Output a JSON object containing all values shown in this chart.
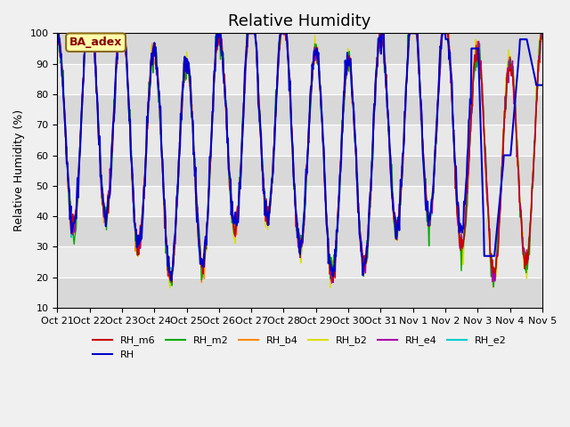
{
  "title": "Relative Humidity",
  "ylabel": "Relative Humidity (%)",
  "ylim": [
    10,
    100
  ],
  "yticks": [
    10,
    20,
    30,
    40,
    50,
    60,
    70,
    80,
    90,
    100
  ],
  "x_tick_labels": [
    "Oct 21",
    "Oct 22",
    "Oct 23",
    "Oct 24",
    "Oct 25",
    "Oct 26",
    "Oct 27",
    "Oct 28",
    "Oct 29",
    "Oct 30",
    "Oct 31",
    "Nov 1",
    "Nov 2",
    "Nov 3",
    "Nov 4",
    "Nov 5"
  ],
  "series": {
    "RH_m6": {
      "color": "#cc0000",
      "lw": 1.0
    },
    "RH": {
      "color": "#0000cc",
      "lw": 1.5
    },
    "RH_m2": {
      "color": "#00aa00",
      "lw": 1.0
    },
    "RH_b4": {
      "color": "#ff8800",
      "lw": 1.0
    },
    "RH_b2": {
      "color": "#dddd00",
      "lw": 1.0
    },
    "RH_e4": {
      "color": "#aa00aa",
      "lw": 1.0
    },
    "RH_e2": {
      "color": "#00cccc",
      "lw": 1.0
    }
  },
  "annotation_text": "BA_adex",
  "grid_color": "#ffffff",
  "title_fontsize": 13,
  "label_fontsize": 9,
  "tick_fontsize": 8,
  "n_days": 15,
  "pts_per_day": 48
}
